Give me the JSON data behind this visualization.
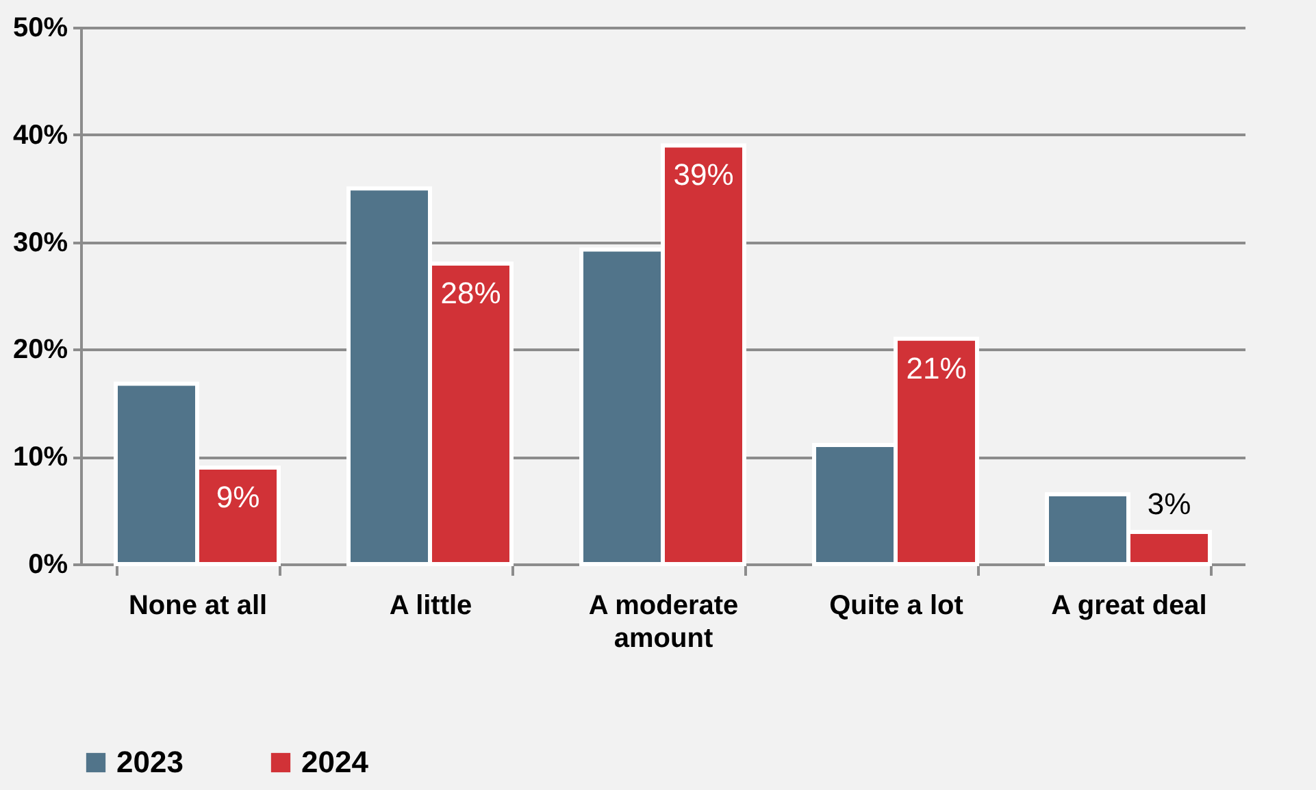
{
  "chart_data": {
    "type": "bar",
    "categories": [
      "None at all",
      "A little",
      "A moderate amount",
      "Quite a lot",
      "A great deal"
    ],
    "series": [
      {
        "name": "2023",
        "color": "#51748a",
        "values": [
          16.8,
          35,
          29.3,
          11.1,
          6.5
        ]
      },
      {
        "name": "2024",
        "color": "#d13237",
        "values": [
          9,
          28,
          39,
          21,
          3
        ],
        "value_labels": [
          "9%",
          "28%",
          "39%",
          "21%",
          "3%"
        ]
      }
    ],
    "ylim": [
      0,
      50
    ],
    "yticks": [
      {
        "value": 0,
        "label": "0%"
      },
      {
        "value": 10,
        "label": "10%"
      },
      {
        "value": 20,
        "label": "20%"
      },
      {
        "value": 30,
        "label": "30%"
      },
      {
        "value": 40,
        "label": "40%"
      },
      {
        "value": 50,
        "label": "50%"
      }
    ],
    "grid": "y",
    "legend": "bottom"
  }
}
